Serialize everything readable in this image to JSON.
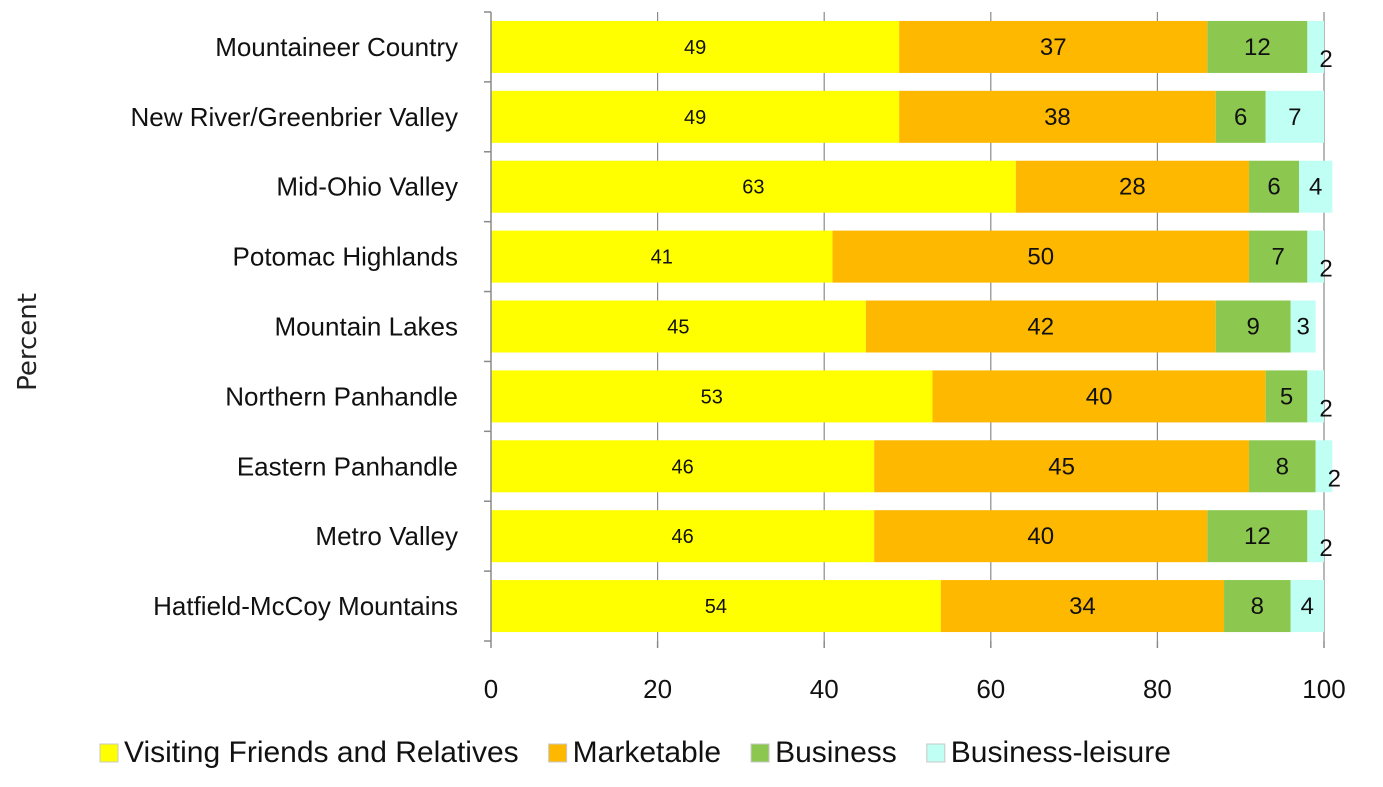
{
  "chart_data": {
    "type": "bar",
    "orientation": "horizontal",
    "stacked": true,
    "title": "",
    "xlabel": "",
    "ylabel": "Percent",
    "xlim": [
      0,
      100
    ],
    "x_ticks": [
      "0",
      "20",
      "40",
      "60",
      "80",
      "100"
    ],
    "grid": true,
    "legend_position": "bottom",
    "categories": [
      "Mountaineer Country",
      "New River/Greenbrier Valley",
      "Mid-Ohio Valley",
      "Potomac Highlands",
      "Mountain Lakes",
      "Northern Panhandle",
      "Eastern Panhandle",
      "Metro Valley",
      "Hatfield-McCoy Mountains"
    ],
    "series": [
      {
        "name": "Visiting Friends and Relatives",
        "color": "#FFFF00",
        "values": [
          49,
          49,
          63,
          41,
          45,
          53,
          46,
          46,
          54
        ]
      },
      {
        "name": "Marketable",
        "color": "#FFB800",
        "values": [
          37,
          38,
          28,
          50,
          42,
          40,
          45,
          40,
          34
        ]
      },
      {
        "name": "Business",
        "color": "#8CC850",
        "values": [
          12,
          6,
          6,
          7,
          9,
          5,
          8,
          12,
          8
        ]
      },
      {
        "name": "Business-leisure",
        "color": "#C0FFF4",
        "values": [
          2,
          7,
          4,
          2,
          3,
          2,
          2,
          2,
          4
        ]
      }
    ]
  }
}
